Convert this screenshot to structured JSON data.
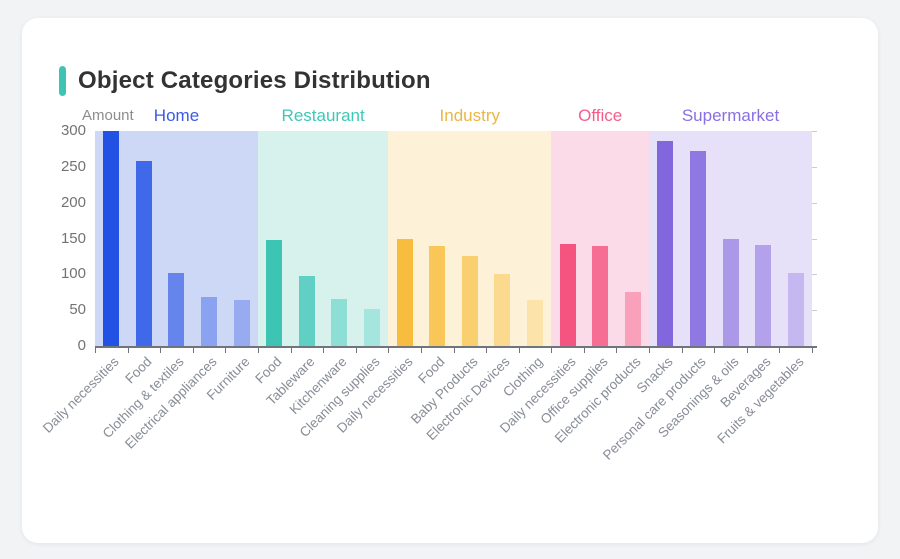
{
  "page": {
    "background": "#f1f3f5"
  },
  "card": {
    "background": "#ffffff"
  },
  "header": {
    "title": "Object Categories Distribution",
    "accent_color": "#3fc4b4"
  },
  "chart_data": {
    "type": "bar",
    "title": "Object Categories Distribution",
    "xlabel": "",
    "ylabel": "Amount",
    "ylim": [
      0,
      300
    ],
    "yticks": [
      0,
      50,
      100,
      150,
      200,
      250,
      300
    ],
    "grid": false,
    "legend_position": "none",
    "group_bands": true,
    "groups": [
      {
        "name": "Home",
        "label_color": "#3a5ae8",
        "band_color": "#cdd8f6",
        "bars": [
          {
            "category": "Daily necessities",
            "value": 300,
            "color": "#2152e3"
          },
          {
            "category": "Food",
            "value": 258,
            "color": "#3f69e8"
          },
          {
            "category": "Clothing & textiles",
            "value": 102,
            "color": "#6585ec"
          },
          {
            "category": "Electrical appliances",
            "value": 69,
            "color": "#8ba2f0"
          },
          {
            "category": "Furniture",
            "value": 64,
            "color": "#97abf1"
          }
        ]
      },
      {
        "name": "Restaurant",
        "label_color": "#3ec8b6",
        "band_color": "#d7f1ed",
        "bars": [
          {
            "category": "Food",
            "value": 148,
            "color": "#3dc4b3"
          },
          {
            "category": "Tableware",
            "value": 97,
            "color": "#5fd0c3"
          },
          {
            "category": "Kitchenware",
            "value": 65,
            "color": "#8dded5"
          },
          {
            "category": "Cleaning supplies",
            "value": 52,
            "color": "#a4e5de"
          }
        ]
      },
      {
        "name": "Industry",
        "label_color": "#e9b646",
        "band_color": "#fdf2d8",
        "bars": [
          {
            "category": "Daily necessities",
            "value": 150,
            "color": "#f8bc3f"
          },
          {
            "category": "Food",
            "value": 139,
            "color": "#f9c658"
          },
          {
            "category": "Baby Products",
            "value": 126,
            "color": "#facf70"
          },
          {
            "category": "Electronic Devices",
            "value": 100,
            "color": "#fbd98f"
          },
          {
            "category": "Clothing",
            "value": 64,
            "color": "#fce3aa"
          }
        ]
      },
      {
        "name": "Office",
        "label_color": "#f45e8c",
        "band_color": "#fcdbe9",
        "bars": [
          {
            "category": "Daily necessities",
            "value": 143,
            "color": "#f4547f"
          },
          {
            "category": "Office supplies",
            "value": 139,
            "color": "#f66e93"
          },
          {
            "category": "Electronic products",
            "value": 76,
            "color": "#f9a0bb"
          }
        ]
      },
      {
        "name": "Supermarket",
        "label_color": "#8a6fe2",
        "band_color": "#e6e0f8",
        "bars": [
          {
            "category": "Snacks",
            "value": 286,
            "color": "#8166dd"
          },
          {
            "category": "Personal care products",
            "value": 272,
            "color": "#9078e2"
          },
          {
            "category": "Seasonings & oils",
            "value": 149,
            "color": "#ab98e9"
          },
          {
            "category": "Beverages",
            "value": 141,
            "color": "#b3a1eb"
          },
          {
            "category": "Fruits & vegetables",
            "value": 102,
            "color": "#c5b8f0"
          }
        ]
      }
    ]
  }
}
